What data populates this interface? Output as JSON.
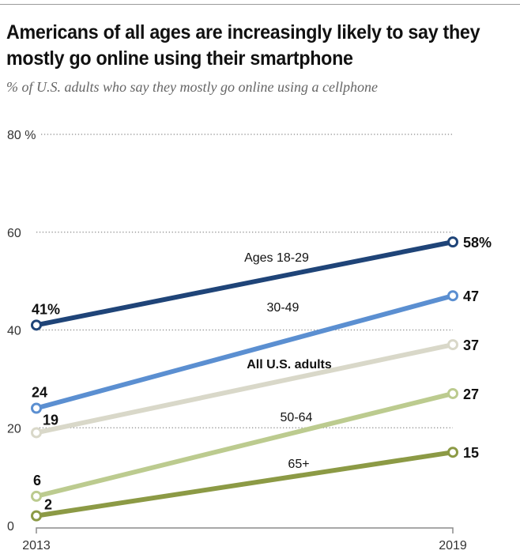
{
  "header": {
    "title": "Americans of all ages are increasingly likely to say they mostly go online using their smartphone",
    "subtitle": "% of U.S. adults who say they mostly go online using a cellphone"
  },
  "chart_data": {
    "type": "line",
    "title": "Americans of all ages are increasingly likely to say they mostly go online using their smartphone",
    "subtitle": "% of U.S. adults who say they mostly go online using a cellphone",
    "xlabel": "",
    "ylabel": "",
    "x": [
      "2013",
      "2019"
    ],
    "ylim": [
      0,
      80
    ],
    "yticks": [
      0,
      20,
      40,
      60,
      80
    ],
    "ytick_labels": [
      "0",
      "20",
      "40",
      "60",
      "80 %"
    ],
    "grid": true,
    "legend": "inline labels",
    "series": [
      {
        "name": "Ages 18-29",
        "values": [
          41,
          58
        ],
        "color": "#1f4478",
        "start_label": "41%",
        "end_label": "58%",
        "label_bold": false
      },
      {
        "name": "30-49",
        "values": [
          24,
          47
        ],
        "color": "#5b8fd1",
        "start_label": "24",
        "end_label": "47",
        "label_bold": false
      },
      {
        "name": "All U.S. adults",
        "values": [
          19,
          37
        ],
        "color": "#d9d8c9",
        "start_label": "19",
        "end_label": "37",
        "label_bold": true
      },
      {
        "name": "50-64",
        "values": [
          6,
          27
        ],
        "color": "#bccb8f",
        "start_label": "6",
        "end_label": "27",
        "label_bold": false
      },
      {
        "name": "65+",
        "values": [
          2,
          15
        ],
        "color": "#8c9a45",
        "start_label": "2",
        "end_label": "15",
        "label_bold": false
      }
    ]
  }
}
